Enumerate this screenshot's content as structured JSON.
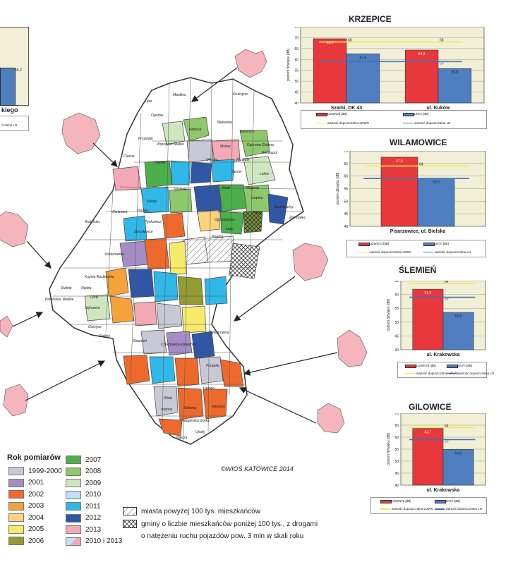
{
  "map": {
    "copyright": "©WIOŚ KATOWICE 2014",
    "places": [
      "Lipie",
      "Miedźno",
      "Kruszyna",
      "Opatów",
      "Kłobuck",
      "Mykanów",
      "Kłomnice",
      "Przystajń",
      "Wręczyca Wielka",
      "Mstów",
      "Dąbrowa Zielona",
      "Ciasna",
      "Herby",
      "Olsztyn",
      "Przyrów",
      "Koniecpol",
      "Janów",
      "Lelów",
      "Woźniki",
      "Zarki",
      "Niegowa",
      "Kalety",
      "Irządze",
      "Szczekociny",
      "Toszek",
      "Wielowieś",
      "Pilica",
      "Żarnowiec",
      "Łazy",
      "Rudziniec",
      "Ogrodzieniec",
      "Poręba",
      "Pyskowice",
      "Zbrosławice",
      "Sośnicowice",
      "Kuźnia Raciborska",
      "Pietrowice Wielkie",
      "Rudnik",
      "Nędza",
      "Lyski",
      "Jejkowice",
      "Gorzyce",
      "Godów",
      "Czechowice-Dziedzice",
      "Strumień",
      "Porąbka",
      "Lipowa",
      "Wisła",
      "Istebna",
      "Milówka",
      "Węgierska Górka",
      "Gilowice",
      "Rajcza",
      "Ujsoły",
      "Wilamowice"
    ]
  },
  "charts": [
    {
      "name": "krzepice",
      "chart_data": {
        "type": "bar",
        "title": "KRZEPICE",
        "ylabel": "poziom dźwięku [dB]",
        "ylim": [
          40,
          75
        ],
        "yticks": [
          40,
          45,
          50,
          55,
          60,
          65,
          70,
          75
        ],
        "categories": [
          "Szarki, DK 43",
          "ul. Kuków"
        ],
        "series": [
          {
            "name": "LDWN7d [dB]",
            "values": [
              69.5,
              64.3
            ],
            "labels": [
              "69,5",
              "64,3"
            ],
            "color": "#e8383d"
          },
          {
            "name": "LN7n [dB]",
            "values": [
              62.6,
              55.8
            ],
            "labels": [
              "62,6",
              "55,8"
            ],
            "color": "#4f7fc1"
          }
        ],
        "limits": [
          {
            "name": "wartość dopuszczalna LDWN",
            "value": 68,
            "label": "68",
            "color": "#f3e84a"
          },
          {
            "name": "wartość dopuszczalna LN",
            "value": 59,
            "label": "59",
            "color": "#3f6fb5"
          }
        ]
      }
    },
    {
      "name": "wilamowice",
      "chart_data": {
        "type": "bar",
        "title": "WILAMOWICE",
        "ylabel": "poziom dźwięku [dB]",
        "ylim": [
          40,
          70
        ],
        "yticks": [
          40,
          45,
          50,
          55,
          60,
          65,
          70
        ],
        "categories": [
          "Pisarzowice,  ul. Bielska"
        ],
        "series": [
          {
            "name": "LDWN7d [dB]",
            "values": [
              67.5
            ],
            "labels": [
              "67,5"
            ],
            "color": "#e8383d"
          },
          {
            "name": "LN7n [dB]",
            "values": [
              59.0
            ],
            "labels": [
              "59,0"
            ],
            "color": "#4f7fc1"
          }
        ],
        "limits": [
          {
            "name": "wartość dopuszczalna LDWN",
            "value": 64,
            "label": "64",
            "color": "#f3e84a"
          },
          {
            "name": "wartość dopuszczalna LN",
            "value": 59,
            "label": "59",
            "color": "#3f6fb5"
          }
        ]
      }
    },
    {
      "name": "slemien",
      "chart_data": {
        "type": "bar",
        "title": "ŚLEMIEŃ",
        "ylabel": "poziom dźwięku [dB]",
        "ylim": [
          40,
          65
        ],
        "yticks": [
          40,
          45,
          50,
          55,
          60,
          65
        ],
        "categories": [
          "ul. Krakowska"
        ],
        "series": [
          {
            "name": "LDWN7d [dB]",
            "values": [
              61.9
            ],
            "labels": [
              "61,9"
            ],
            "color": "#e8383d"
          },
          {
            "name": "LN7n [dB]",
            "values": [
              53.5
            ],
            "labels": [
              "53,5"
            ],
            "color": "#4f7fc1"
          }
        ],
        "limits": [
          {
            "name": "wartość dopuszczalna LDWN",
            "value": 64,
            "label": "64",
            "color": "#f3e84a"
          },
          {
            "name": "wartość dopuszczalna LN",
            "value": 59,
            "label": "59",
            "color": "#3f6fb5"
          }
        ]
      }
    },
    {
      "name": "gilowice",
      "chart_data": {
        "type": "bar",
        "title": "GILOWICE",
        "ylabel": "poziom dźwięku [dB]",
        "ylim": [
          40,
          70
        ],
        "yticks": [
          40,
          45,
          50,
          55,
          60,
          65,
          70
        ],
        "categories": [
          "ul. Krakowska"
        ],
        "series": [
          {
            "name": "LDWN7d [dB]",
            "values": [
              63.7
            ],
            "labels": [
              "63,7"
            ],
            "color": "#e8383d"
          },
          {
            "name": "LN7n [dB]",
            "values": [
              54.9
            ],
            "labels": [
              "54,9"
            ],
            "color": "#4f7fc1"
          }
        ],
        "limits": [
          {
            "name": "wartość dopuszczalna LDWN",
            "value": 64,
            "label": "64",
            "color": "#f3e84a"
          },
          {
            "name": "wartość dopuszczalna LN",
            "value": 59,
            "label": "59",
            "color": "#3f6fb5"
          }
        ]
      }
    }
  ],
  "partial_chart": {
    "value_label": "55,2",
    "caption": "kiego",
    "legend_fragment": "zczalna LN"
  },
  "year_legend": {
    "title": "Rok pomiarów",
    "items": [
      {
        "label": "1999-2000",
        "color": "#c9c9d6"
      },
      {
        "label": "2001",
        "color": "#a58cc6"
      },
      {
        "label": "2002",
        "color": "#ee6a2c"
      },
      {
        "label": "2003",
        "color": "#f6a23a"
      },
      {
        "label": "2004",
        "color": "#fbd37a"
      },
      {
        "label": "2005",
        "color": "#f6ea6b"
      },
      {
        "label": "2006",
        "color": "#939b33"
      },
      {
        "label": "2007",
        "color": "#4caf4a"
      },
      {
        "label": "2008",
        "color": "#8fc86c"
      },
      {
        "label": "2009",
        "color": "#cfe7c1"
      },
      {
        "label": "2010",
        "color": "#bfe3f4"
      },
      {
        "label": "2011",
        "color": "#2fb8e8"
      },
      {
        "label": "2012",
        "color": "#2f57a6"
      },
      {
        "label": "2013",
        "color": "#f3a9b6"
      },
      {
        "label": "2010 i 2013",
        "color": "#bfe3f4"
      }
    ]
  },
  "hatch_legend": {
    "cities": "miasta powyżej 100 tys. mieszkańców",
    "gminy_line1": "gminy o liczbie mieszkańców poniżej 100 tys., z drogami",
    "gminy_line2": "o natężeniu ruchu pojazdów pow. 3 mln w skali roku"
  },
  "colors": {
    "plot_bg": "#f1f0d6",
    "red": "#e8383d",
    "blue": "#4f7fc1",
    "yellow": "#f3e84a",
    "pink_blob": "#f4b5bd"
  }
}
